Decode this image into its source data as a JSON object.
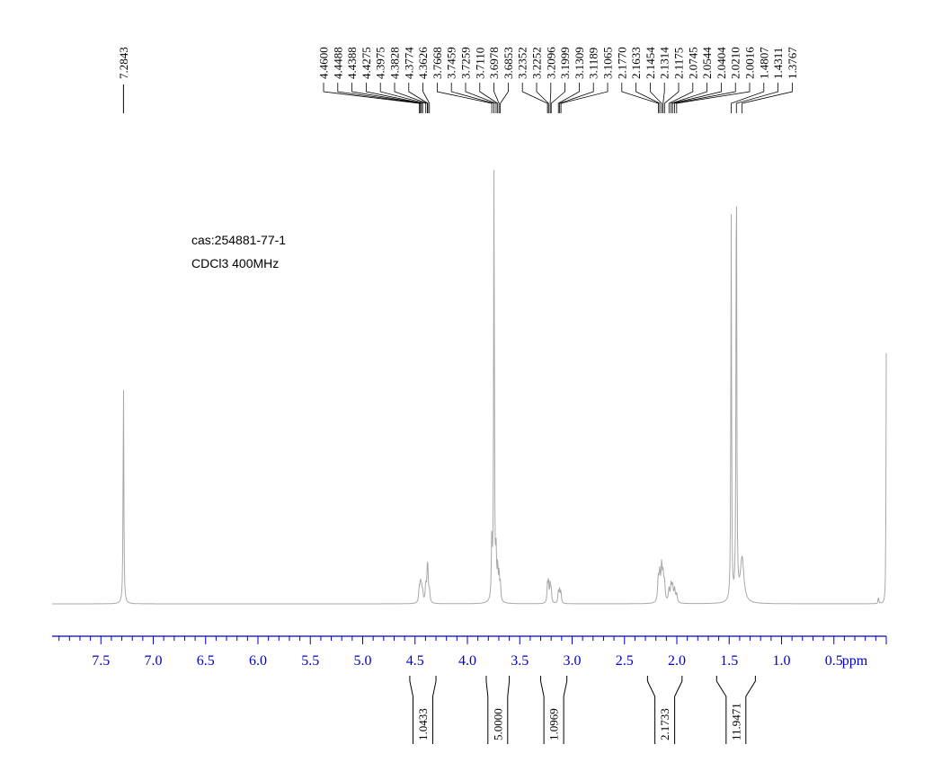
{
  "annotation": {
    "line1": "cas:254881-77-1",
    "line2": "CDCl3  400MHz"
  },
  "colors": {
    "spectrum": "#a8a8a8",
    "axis": "#0000cc",
    "labels": "#000000"
  },
  "chart_data": {
    "type": "line",
    "xlabel": "ppm",
    "x_reversed": true,
    "xlim": [
      8.0,
      -0.05
    ],
    "x_ticks": [
      "7.5",
      "7.0",
      "6.5",
      "6.0",
      "5.5",
      "5.0",
      "4.5",
      "4.0",
      "3.5",
      "3.0",
      "2.5",
      "2.0",
      "1.5",
      "1.0",
      "0.5"
    ],
    "peak_labels": [
      {
        "label": "7.2843",
        "x": 7.2843
      },
      {
        "label": "4.4600",
        "x": 4.46
      },
      {
        "label": "4.4488",
        "x": 4.4488
      },
      {
        "label": "4.4388",
        "x": 4.4388
      },
      {
        "label": "4.4275",
        "x": 4.4275
      },
      {
        "label": "4.3975",
        "x": 4.3975
      },
      {
        "label": "4.3828",
        "x": 4.3828
      },
      {
        "label": "4.3774",
        "x": 4.3774
      },
      {
        "label": "4.3626",
        "x": 4.3626
      },
      {
        "label": "3.7668",
        "x": 3.7668
      },
      {
        "label": "3.7459",
        "x": 3.7459
      },
      {
        "label": "3.7259",
        "x": 3.7259
      },
      {
        "label": "3.7110",
        "x": 3.711
      },
      {
        "label": "3.6978",
        "x": 3.6978
      },
      {
        "label": "3.6853",
        "x": 3.6853
      },
      {
        "label": "3.2352",
        "x": 3.2352
      },
      {
        "label": "3.2252",
        "x": 3.2252
      },
      {
        "label": "3.2096",
        "x": 3.2096
      },
      {
        "label": "3.1999",
        "x": 3.1999
      },
      {
        "label": "3.1309",
        "x": 3.1309
      },
      {
        "label": "3.1189",
        "x": 3.1189
      },
      {
        "label": "3.1065",
        "x": 3.1065
      },
      {
        "label": "2.1770",
        "x": 2.177
      },
      {
        "label": "2.1633",
        "x": 2.1633
      },
      {
        "label": "2.1454",
        "x": 2.1454
      },
      {
        "label": "2.1314",
        "x": 2.1314
      },
      {
        "label": "2.1175",
        "x": 2.1175
      },
      {
        "label": "2.0745",
        "x": 2.0745
      },
      {
        "label": "2.0544",
        "x": 2.0544
      },
      {
        "label": "2.0404",
        "x": 2.0404
      },
      {
        "label": "2.0210",
        "x": 2.021
      },
      {
        "label": "2.0016",
        "x": 2.0016
      },
      {
        "label": "1.4807",
        "x": 1.4807
      },
      {
        "label": "1.4311",
        "x": 1.4311
      },
      {
        "label": "1.3767",
        "x": 1.3767
      }
    ],
    "integrals": [
      {
        "label": "1.0433",
        "from": 4.55,
        "to": 4.3
      },
      {
        "label": "5.0000",
        "from": 3.82,
        "to": 3.6
      },
      {
        "label": "1.0969",
        "from": 3.3,
        "to": 3.05
      },
      {
        "label": "2.1733",
        "from": 2.28,
        "to": 1.95
      },
      {
        "label": "11.9471",
        "from": 1.62,
        "to": 1.25
      }
    ],
    "peaks": [
      {
        "x": 7.2843,
        "h": 0.51,
        "w": 0.004
      },
      {
        "x": 4.46,
        "h": 0.03,
        "w": 0.006
      },
      {
        "x": 4.4488,
        "h": 0.04,
        "w": 0.006
      },
      {
        "x": 4.4388,
        "h": 0.03,
        "w": 0.006
      },
      {
        "x": 4.4275,
        "h": 0.022,
        "w": 0.006
      },
      {
        "x": 4.3975,
        "h": 0.038,
        "w": 0.006
      },
      {
        "x": 4.3828,
        "h": 0.055,
        "w": 0.006
      },
      {
        "x": 4.3774,
        "h": 0.05,
        "w": 0.006
      },
      {
        "x": 4.3626,
        "h": 0.025,
        "w": 0.006
      },
      {
        "x": 3.7668,
        "h": 0.14,
        "w": 0.005
      },
      {
        "x": 3.7459,
        "h": 1.0,
        "w": 0.004
      },
      {
        "x": 3.7259,
        "h": 0.1,
        "w": 0.005
      },
      {
        "x": 3.711,
        "h": 0.07,
        "w": 0.005
      },
      {
        "x": 3.6978,
        "h": 0.06,
        "w": 0.005
      },
      {
        "x": 3.6853,
        "h": 0.04,
        "w": 0.005
      },
      {
        "x": 3.2352,
        "h": 0.04,
        "w": 0.005
      },
      {
        "x": 3.2252,
        "h": 0.048,
        "w": 0.005
      },
      {
        "x": 3.2096,
        "h": 0.04,
        "w": 0.005
      },
      {
        "x": 3.1999,
        "h": 0.03,
        "w": 0.005
      },
      {
        "x": 3.1309,
        "h": 0.028,
        "w": 0.005
      },
      {
        "x": 3.1189,
        "h": 0.03,
        "w": 0.005
      },
      {
        "x": 3.1065,
        "h": 0.025,
        "w": 0.005
      },
      {
        "x": 2.177,
        "h": 0.05,
        "w": 0.007
      },
      {
        "x": 2.1633,
        "h": 0.06,
        "w": 0.007
      },
      {
        "x": 2.1454,
        "h": 0.075,
        "w": 0.007
      },
      {
        "x": 2.1314,
        "h": 0.055,
        "w": 0.007
      },
      {
        "x": 2.1175,
        "h": 0.04,
        "w": 0.007
      },
      {
        "x": 2.0745,
        "h": 0.03,
        "w": 0.007
      },
      {
        "x": 2.0544,
        "h": 0.038,
        "w": 0.007
      },
      {
        "x": 2.0404,
        "h": 0.035,
        "w": 0.007
      },
      {
        "x": 2.021,
        "h": 0.03,
        "w": 0.007
      },
      {
        "x": 2.0016,
        "h": 0.02,
        "w": 0.007
      },
      {
        "x": 1.4807,
        "h": 0.86,
        "w": 0.004
      },
      {
        "x": 1.4311,
        "h": 1.07,
        "w": 0.004
      },
      {
        "x": 1.3767,
        "h": 0.1,
        "w": 0.02
      },
      {
        "x": 0.075,
        "h": 0.015,
        "w": 0.004
      },
      {
        "x": 0.0,
        "h": 0.56,
        "w": 0.003
      }
    ]
  }
}
